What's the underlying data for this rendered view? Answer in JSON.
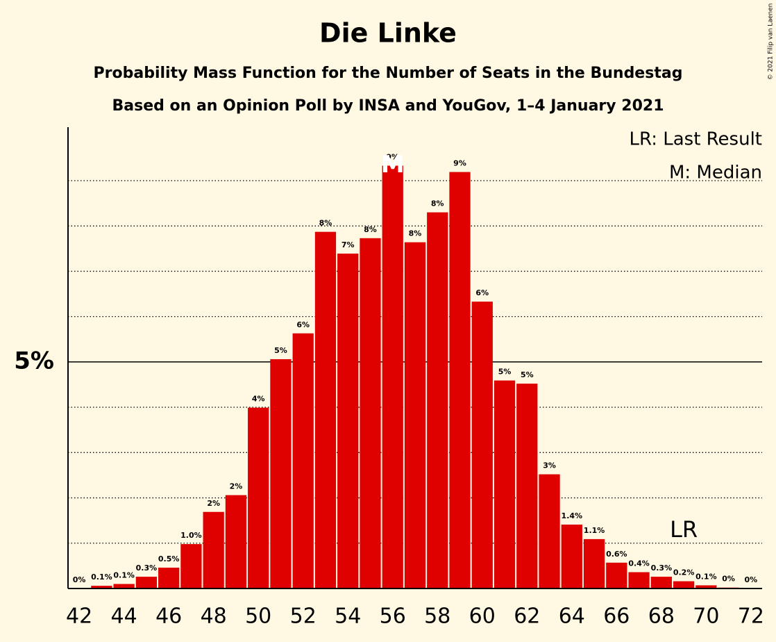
{
  "chart_data": {
    "type": "bar",
    "title": "Die Linke",
    "subtitle": "Probability Mass Function for the Number of Seats in the Bundestag",
    "subtitle2": "Based on an Opinion Poll by INSA and YouGov, 1–4 January 2021",
    "copyright": "© 2021 Filip van Laenen",
    "legend": [
      "LR: Last Result",
      "M: Median"
    ],
    "legend_position": "top-right",
    "color": "#df0000",
    "x": [
      42,
      43,
      44,
      45,
      46,
      47,
      48,
      49,
      50,
      51,
      52,
      53,
      54,
      55,
      56,
      57,
      58,
      59,
      60,
      61,
      62,
      63,
      64,
      65,
      66,
      67,
      68,
      69,
      70,
      71,
      72
    ],
    "values": [
      0,
      0.06,
      0.1,
      0.26,
      0.46,
      0.98,
      1.69,
      2.06,
      3.99,
      5.06,
      5.63,
      7.87,
      7.39,
      7.73,
      9.33,
      7.64,
      8.3,
      9.19,
      6.33,
      4.59,
      4.52,
      2.52,
      1.41,
      1.09,
      0.57,
      0.36,
      0.26,
      0.16,
      0.07,
      0.02,
      0
    ],
    "value_labels": [
      "0%",
      "0.1%",
      "0.1%",
      "0.3%",
      "0.5%",
      "1.0%",
      "2%",
      "2%",
      "4%",
      "5%",
      "6%",
      "8%",
      "7%",
      "8%",
      "9%",
      "8%",
      "8%",
      "9%",
      "6%",
      "5%",
      "5%",
      "3%",
      "1.4%",
      "1.1%",
      "0.6%",
      "0.4%",
      "0.3%",
      "0.2%",
      "0.1%",
      "0%",
      "0%"
    ],
    "xlim": [
      41.5,
      72.5
    ],
    "xticks": [
      42,
      44,
      46,
      48,
      50,
      52,
      54,
      56,
      58,
      60,
      62,
      64,
      66,
      68,
      70,
      72
    ],
    "ylim": [
      0,
      10.18
    ],
    "yticks": [
      {
        "value": 5,
        "label": "5%"
      }
    ],
    "gridlines": [
      1,
      2,
      3,
      4,
      6,
      7,
      8,
      9
    ],
    "median": {
      "label": "M",
      "x": 56
    },
    "last_result": {
      "label": "LR",
      "x": 69
    }
  }
}
